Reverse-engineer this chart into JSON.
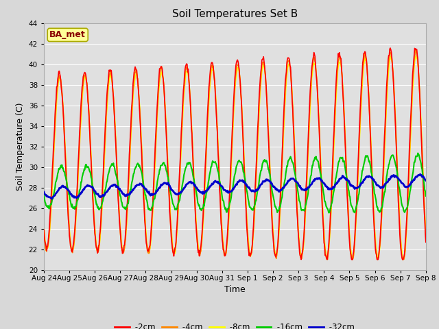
{
  "title": "Soil Temperatures Set B",
  "xlabel": "Time",
  "ylabel": "Soil Temperature (C)",
  "ylim": [
    20,
    44
  ],
  "yticks": [
    20,
    22,
    24,
    26,
    28,
    30,
    32,
    34,
    36,
    38,
    40,
    42,
    44
  ],
  "x_labels": [
    "Aug 24",
    "Aug 25",
    "Aug 26",
    "Aug 27",
    "Aug 28",
    "Aug 29",
    "Aug 30",
    "Aug 31",
    "Sep 1",
    "Sep 2",
    "Sep 3",
    "Sep 4",
    "Sep 5",
    "Sep 6",
    "Sep 7",
    "Sep 8"
  ],
  "background_color": "#d8d8d8",
  "plot_bg_color": "#e0e0e0",
  "grid_color": "#ffffff",
  "annotation_text": "BA_met",
  "annotation_bg": "#ffff99",
  "annotation_border": "#aaaa00",
  "annotation_text_color": "#880000",
  "colors": {
    "-2cm": "#ff0000",
    "-4cm": "#ff8800",
    "-8cm": "#ffff00",
    "-16cm": "#00cc00",
    "-32cm": "#0000cc"
  },
  "line_widths": {
    "-2cm": 1.2,
    "-4cm": 1.2,
    "-8cm": 1.2,
    "-16cm": 1.5,
    "-32cm": 2.0
  },
  "n_days": 15,
  "n_points_per_day": 48
}
